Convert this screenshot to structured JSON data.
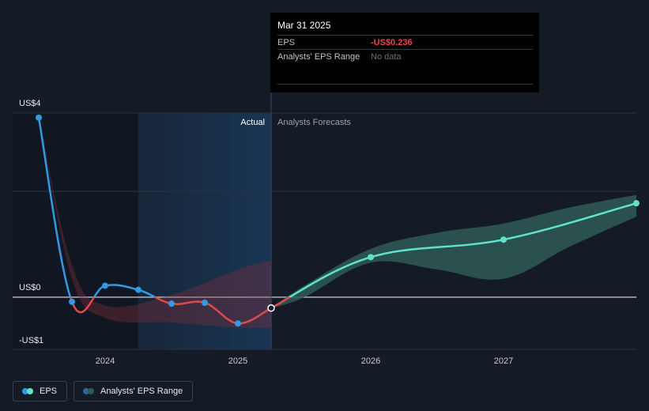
{
  "tooltip": {
    "date": "Mar 31 2025",
    "rows": [
      {
        "label": "EPS",
        "value": "-US$0.236"
      },
      {
        "label": "Analysts' EPS Range",
        "value": "No data"
      }
    ]
  },
  "legend": {
    "eps": "EPS",
    "range": "Analysts' EPS Range"
  },
  "colors": {
    "background": "#151b26",
    "eps_positive": "#2e9be4",
    "eps_negative": "#e04a4a",
    "forecast": "#5fe3cc",
    "forecast_range": "#2e5a56",
    "actual_band": "#1a3a5c"
  },
  "chart_data": {
    "type": "line",
    "y_axis": {
      "ylim": [
        -1,
        4
      ],
      "labels": [
        {
          "value": 4,
          "text": "US$4"
        },
        {
          "value": 0,
          "text": "US$0"
        },
        {
          "value": -1,
          "text": "-US$1"
        }
      ]
    },
    "x_axis": {
      "ticks": [
        {
          "value": 2024,
          "text": "2024"
        },
        {
          "value": 2025,
          "text": "2025"
        },
        {
          "value": 2026,
          "text": "2026"
        },
        {
          "value": 2027,
          "text": "2027"
        }
      ],
      "xlim": [
        2022.82,
        2028.0
      ]
    },
    "regions": {
      "actual_label": "Actual",
      "forecast_label": "Analysts Forecasts",
      "divider_x": 2025.25,
      "highlight_from": 2024.25
    },
    "series": [
      {
        "name": "EPS",
        "points": [
          {
            "x": 2023.5,
            "y": 3.9
          },
          {
            "x": 2023.75,
            "y": -0.1
          },
          {
            "x": 2024.0,
            "y": 0.25
          },
          {
            "x": 2024.25,
            "y": 0.16
          },
          {
            "x": 2024.5,
            "y": -0.14
          },
          {
            "x": 2024.75,
            "y": -0.12
          },
          {
            "x": 2025.0,
            "y": -0.57
          },
          {
            "x": 2025.25,
            "y": -0.236
          }
        ]
      },
      {
        "name": "EPS forecast",
        "points": [
          {
            "x": 2025.25,
            "y": -0.236
          },
          {
            "x": 2026.0,
            "y": 0.87
          },
          {
            "x": 2027.0,
            "y": 1.25
          },
          {
            "x": 2028.0,
            "y": 2.04
          }
        ]
      }
    ],
    "range_band_actual": {
      "upper": [
        [
          2023.5,
          3.9
        ],
        [
          2023.75,
          0.7
        ],
        [
          2024.0,
          -0.18
        ],
        [
          2024.5,
          0.05
        ],
        [
          2025.0,
          0.6
        ],
        [
          2025.25,
          0.8
        ]
      ],
      "lower": [
        [
          2025.25,
          -0.66
        ],
        [
          2025.0,
          -0.66
        ],
        [
          2024.5,
          -0.55
        ],
        [
          2024.0,
          -0.45
        ],
        [
          2023.75,
          0.4
        ],
        [
          2023.5,
          3.9
        ]
      ]
    },
    "range_band_forecast": {
      "upper": [
        [
          2025.25,
          -0.236
        ],
        [
          2025.5,
          0.25
        ],
        [
          2026.0,
          1.05
        ],
        [
          2026.5,
          1.4
        ],
        [
          2027.0,
          1.6
        ],
        [
          2027.5,
          1.95
        ],
        [
          2028.0,
          2.22
        ]
      ],
      "lower": [
        [
          2028.0,
          1.75
        ],
        [
          2027.5,
          1.1
        ],
        [
          2027.0,
          0.4
        ],
        [
          2026.5,
          0.6
        ],
        [
          2026.0,
          0.75
        ],
        [
          2025.5,
          0.0
        ],
        [
          2025.25,
          -0.236
        ]
      ]
    }
  }
}
